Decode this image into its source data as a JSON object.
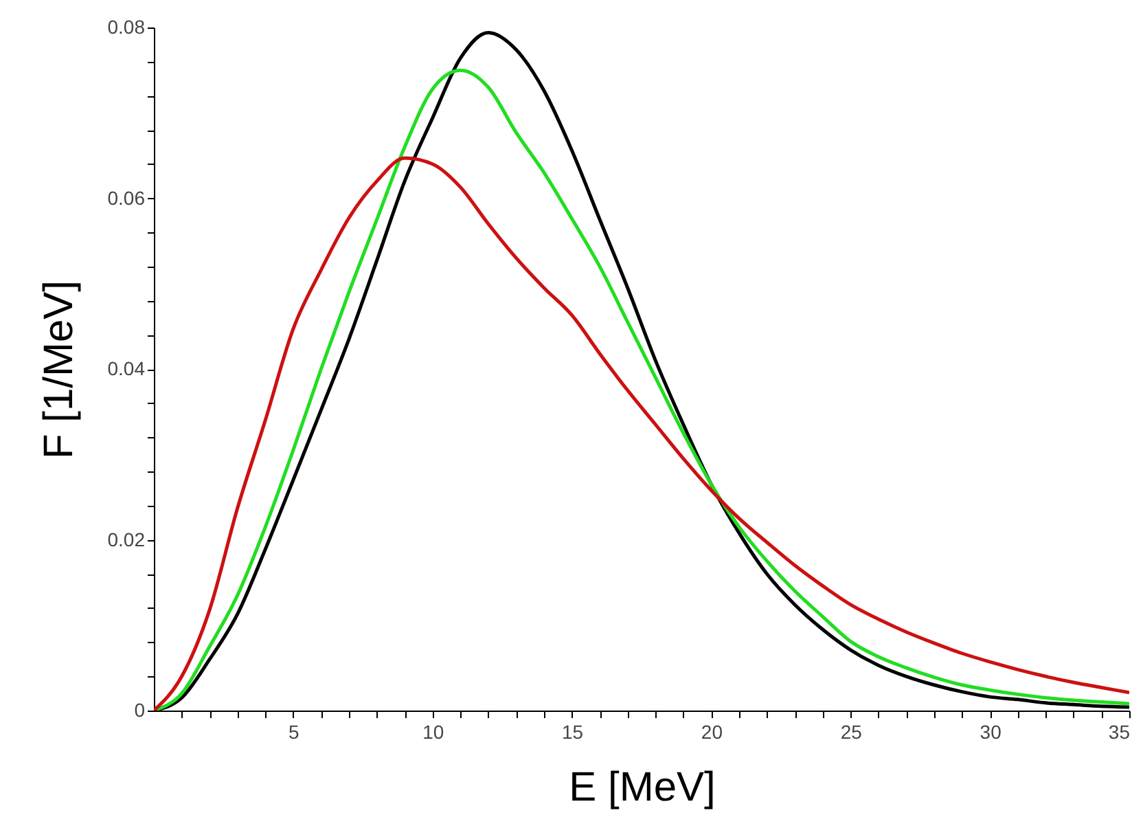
{
  "chart_data": {
    "type": "line",
    "xlabel": "E [MeV]",
    "ylabel": "F [1/MeV]",
    "x": [
      0,
      1,
      2,
      3,
      4,
      5,
      6,
      7,
      8,
      9,
      10,
      11,
      12,
      13,
      14,
      15,
      16,
      17,
      18,
      19,
      20,
      21,
      22,
      23,
      24,
      25,
      26,
      27,
      28,
      29,
      30,
      31,
      32,
      33,
      34,
      35
    ],
    "series": [
      {
        "color": "#000000",
        "values": [
          0,
          0.0015,
          0.006,
          0.0113,
          0.0189,
          0.027,
          0.0352,
          0.0435,
          0.0527,
          0.062,
          0.0694,
          0.0764,
          0.0794,
          0.0774,
          0.0726,
          0.0656,
          0.0575,
          0.0495,
          0.041,
          0.0335,
          0.0265,
          0.0208,
          0.016,
          0.0124,
          0.0095,
          0.0071,
          0.0053,
          0.004,
          0.003,
          0.0022,
          0.0016,
          0.0013,
          0.0009,
          0.0007,
          0.0005,
          0.0004
        ]
      },
      {
        "color": "#22dd22",
        "values": [
          0,
          0.002,
          0.0075,
          0.0135,
          0.0215,
          0.0305,
          0.04,
          0.049,
          0.0575,
          0.066,
          0.0728,
          0.075,
          0.073,
          0.0677,
          0.063,
          0.0576,
          0.052,
          0.0455,
          0.039,
          0.0325,
          0.0265,
          0.0215,
          0.0175,
          0.014,
          0.011,
          0.0081,
          0.0063,
          0.005,
          0.0039,
          0.003,
          0.0024,
          0.0019,
          0.0015,
          0.0012,
          0.001,
          0.0008
        ]
      },
      {
        "color": "#cc1111",
        "values": [
          0,
          0.004,
          0.0118,
          0.0237,
          0.034,
          0.0447,
          0.0516,
          0.0577,
          0.062,
          0.0647,
          0.064,
          0.0613,
          0.057,
          0.053,
          0.0495,
          0.0463,
          0.0418,
          0.0375,
          0.0335,
          0.0295,
          0.0258,
          0.0225,
          0.0197,
          0.017,
          0.0146,
          0.0124,
          0.0107,
          0.0092,
          0.0079,
          0.0067,
          0.0057,
          0.0048,
          0.004,
          0.0033,
          0.0027,
          0.0021
        ]
      }
    ],
    "xlim": [
      0,
      35
    ],
    "xticks": [
      {
        "value": 1,
        "label": null
      },
      {
        "value": 2,
        "label": null
      },
      {
        "value": 3,
        "label": null
      },
      {
        "value": 4,
        "label": null
      },
      5,
      {
        "value": 6,
        "label": null
      },
      {
        "value": 7,
        "label": null
      },
      {
        "value": 8,
        "label": null
      },
      {
        "value": 9,
        "label": null
      },
      10,
      {
        "value": 11,
        "label": null
      },
      {
        "value": 12,
        "label": null
      },
      {
        "value": 13,
        "label": null
      },
      {
        "value": 14,
        "label": null
      },
      15,
      {
        "value": 16,
        "label": null
      },
      {
        "value": 17,
        "label": null
      },
      {
        "value": 18,
        "label": null
      },
      {
        "value": 19,
        "label": null
      },
      20,
      {
        "value": 21,
        "label": null
      },
      {
        "value": 22,
        "label": null
      },
      {
        "value": 23,
        "label": null
      },
      {
        "value": 24,
        "label": null
      },
      25,
      {
        "value": 26,
        "label": null
      },
      {
        "value": 27,
        "label": null
      },
      {
        "value": 28,
        "label": null
      },
      {
        "value": 29,
        "label": null
      },
      30,
      {
        "value": 31,
        "label": null
      },
      {
        "value": 32,
        "label": null
      },
      {
        "value": 33,
        "label": null
      },
      {
        "value": 34,
        "label": null
      },
      35
    ],
    "ylim": [
      0,
      0.08
    ],
    "yticks": [
      0,
      {
        "value": 0.004,
        "label": null
      },
      {
        "value": 0.008,
        "label": null
      },
      {
        "value": 0.012,
        "label": null
      },
      {
        "value": 0.016,
        "label": null
      },
      0.02,
      {
        "value": 0.024,
        "label": null
      },
      {
        "value": 0.028,
        "label": null
      },
      {
        "value": 0.032,
        "label": null
      },
      {
        "value": 0.036,
        "label": null
      },
      0.04,
      {
        "value": 0.044,
        "label": null
      },
      {
        "value": 0.048,
        "label": null
      },
      {
        "value": 0.052,
        "label": null
      },
      {
        "value": 0.056,
        "label": null
      },
      0.06,
      {
        "value": 0.064,
        "label": null
      },
      {
        "value": 0.068,
        "label": null
      },
      {
        "value": 0.072,
        "label": null
      },
      {
        "value": 0.076,
        "label": null
      },
      0.08
    ],
    "grid": false,
    "marker": "none",
    "line_style": "solid"
  }
}
